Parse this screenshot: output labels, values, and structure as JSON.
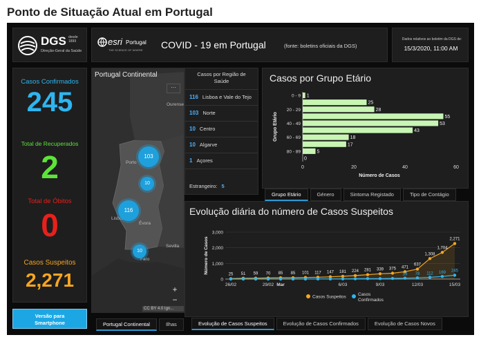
{
  "page_title": "Ponto de Situação Atual em Portugal",
  "header": {
    "dgs_abbrev": "DGS",
    "dgs_since": "desde 1899",
    "dgs_name": "Direção-Geral da Saúde",
    "esri_logo": "esri",
    "esri_country": "Portugal",
    "esri_tagline": "THE SCIENCE OF WHERE",
    "title": "COVID - 19 em Portugal",
    "source": "(fonte: boletins oficiais da DGS)",
    "date_note": "Dados relativos ao boletim da DGS de:",
    "date_value": "15/3/2020, 11:00 AM"
  },
  "stats": [
    {
      "label": "Casos Confirmados",
      "value": "245",
      "color": "#2eb6f0"
    },
    {
      "label": "Total de Recuperados",
      "value": "2",
      "color": "#5de33a"
    },
    {
      "label": "Total de Óbitos",
      "value": "0",
      "color": "#e8201b"
    },
    {
      "label": "Casos Suspeitos",
      "value": "2,271",
      "color": "#f5a623"
    }
  ],
  "smartphone_button": "Versão para Smartphone",
  "map": {
    "title": "Portugal Continental",
    "menu_icon": "more-icon",
    "city_labels": [
      "Ourense",
      "Porto",
      "Lisboa",
      "Évora",
      "Sevilla",
      "Faro"
    ],
    "clusters": [
      "103",
      "10",
      "116",
      "10"
    ],
    "attribution": "CC BY 4.0 Ign...",
    "zoom_in": "+",
    "zoom_out": "−",
    "tabs": [
      "Portugal Continental",
      "Ilhas"
    ]
  },
  "regions": {
    "title": "Casos por Região de Saúde",
    "items": [
      {
        "count": "116",
        "name": "Lisboa e Vale do Tejo"
      },
      {
        "count": "103",
        "name": "Norte"
      },
      {
        "count": "10",
        "name": "Centro"
      },
      {
        "count": "10",
        "name": "Algarve"
      },
      {
        "count": "1",
        "name": "Açores"
      }
    ],
    "foreign_label": "Estrangeiro:",
    "foreign_value": "5"
  },
  "age_chart": {
    "tabs": [
      "Grupo Etário",
      "Género",
      "Sintoma Registado",
      "Tipo de Contágio"
    ]
  },
  "evo_chart": {
    "tabs": [
      "Evolução de Casos Suspeitos",
      "Evolução de Casos Confirmados",
      "Evolução de Casos Novos"
    ]
  },
  "chart_data": [
    {
      "type": "bar",
      "title": "Casos por Grupo Etário",
      "orientation": "horizontal",
      "categories": [
        "0 - 9",
        "10 - 19",
        "20 - 29",
        "30 - 39",
        "40 - 49",
        "50 - 59",
        "60 - 69",
        "70 - 79",
        "80 - 89",
        "90+"
      ],
      "category_tick_labels": [
        "0 - 9",
        "",
        "20 - 29",
        "",
        "40 - 49",
        "",
        "60 - 69",
        "",
        "80 - 89",
        ""
      ],
      "values": [
        1,
        25,
        28,
        55,
        53,
        43,
        18,
        17,
        5,
        0
      ],
      "xlabel": "Número de Casos",
      "ylabel": "Grupo Etário",
      "xlim": [
        0,
        60
      ],
      "xticks": [
        0,
        20,
        40,
        60
      ],
      "bar_color": "#c8f5b4"
    },
    {
      "type": "line",
      "title": "Evolução diária do número de Casos Suspeitos",
      "x": [
        "26/02",
        "27/02",
        "28/02",
        "29/02",
        "01/03",
        "02/03",
        "03/03",
        "04/03",
        "05/03",
        "06/03",
        "07/03",
        "08/03",
        "09/03",
        "10/03",
        "11/03",
        "12/03",
        "13/03",
        "14/03",
        "15/03"
      ],
      "xtick_labels": [
        "26/02",
        "29/02",
        "Mar",
        "6/03",
        "9/03",
        "12/03",
        "15/03"
      ],
      "series": [
        {
          "name": "Casos Suspeitos",
          "color": "#f5a623",
          "values": [
            25,
            51,
            59,
            70,
            85,
            85,
            101,
            117,
            147,
            181,
            224,
            281,
            339,
            375,
            471,
            637,
            1308,
            1704,
            2271
          ]
        },
        {
          "name": "Casos Confirmados",
          "color": "#2eb6f0",
          "values": [
            0,
            0,
            0,
            0,
            0,
            2,
            4,
            6,
            9,
            13,
            21,
            30,
            30,
            41,
            59,
            78,
            112,
            169,
            245
          ]
        }
      ],
      "data_labels": {
        "suspeitos": [
          "25",
          "51",
          "59",
          "70",
          "85",
          "85",
          "101",
          "117",
          "147",
          "181",
          "224",
          "281",
          "339",
          "375",
          "471",
          "637",
          "1,308",
          "1,704",
          "2,271"
        ],
        "confirmados": [
          "",
          "",
          "",
          "",
          "",
          "",
          "",
          "",
          "",
          "",
          "",
          "",
          "",
          "",
          "59",
          "78",
          "112",
          "169",
          "245"
        ]
      },
      "ylabel": "Número de Casos",
      "ylim": [
        0,
        3000
      ],
      "yticks": [
        "0",
        "1,000",
        "2,000",
        "3,000"
      ],
      "legend_position": "bottom"
    }
  ]
}
